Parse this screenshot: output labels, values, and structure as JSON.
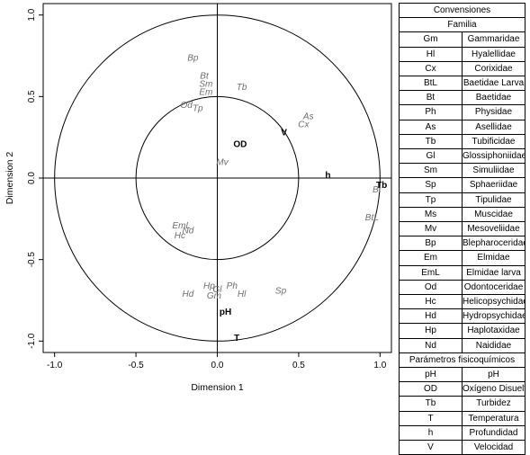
{
  "chart_data": {
    "type": "scatter",
    "xlabel": "Dimension  1",
    "ylabel": "Dimension  2",
    "xlim": [
      -1.0,
      1.0
    ],
    "ylim": [
      -1.0,
      1.0
    ],
    "x_ticks": [
      "-1.0",
      "-0.5",
      "0.0",
      "0.5",
      "1.0"
    ],
    "y_ticks": [
      "-1.0",
      "-0.5",
      "0.0",
      "0.5",
      "1.0"
    ],
    "x_tick_values": [
      -1.0,
      -0.5,
      0.0,
      0.5,
      1.0
    ],
    "y_tick_values": [
      -1.0,
      -0.5,
      0.0,
      0.5,
      1.0
    ],
    "circle_radii": [
      1.0,
      0.5
    ],
    "species": [
      {
        "label": "Bp",
        "x": -0.15,
        "y": 0.74
      },
      {
        "label": "Bt",
        "x": -0.08,
        "y": 0.63
      },
      {
        "label": "Sm",
        "x": -0.07,
        "y": 0.58
      },
      {
        "label": "Em",
        "x": -0.07,
        "y": 0.53
      },
      {
        "label": "Tb",
        "x": 0.15,
        "y": 0.56
      },
      {
        "label": "Od",
        "x": -0.19,
        "y": 0.45
      },
      {
        "label": "Tp",
        "x": -0.12,
        "y": 0.43
      },
      {
        "label": "As",
        "x": 0.56,
        "y": 0.38
      },
      {
        "label": "Cx",
        "x": 0.53,
        "y": 0.33
      },
      {
        "label": "Mv",
        "x": 0.03,
        "y": 0.1
      },
      {
        "label": "Bt",
        "x": 0.98,
        "y": -0.07
      },
      {
        "label": "BtL",
        "x": 0.95,
        "y": -0.24
      },
      {
        "label": "EmL",
        "x": -0.22,
        "y": -0.29
      },
      {
        "label": "Nd",
        "x": -0.18,
        "y": -0.32
      },
      {
        "label": "Hc",
        "x": -0.23,
        "y": -0.35
      },
      {
        "label": "Hp",
        "x": -0.05,
        "y": -0.66
      },
      {
        "label": "Gl",
        "x": 0.0,
        "y": -0.68
      },
      {
        "label": "Ph",
        "x": 0.09,
        "y": -0.66
      },
      {
        "label": "Hd",
        "x": -0.18,
        "y": -0.71
      },
      {
        "label": "Gm",
        "x": -0.02,
        "y": -0.72
      },
      {
        "label": "Hl",
        "x": 0.15,
        "y": -0.71
      },
      {
        "label": "Sp",
        "x": 0.39,
        "y": -0.69
      }
    ],
    "variables": [
      {
        "label": "OD",
        "x": 0.14,
        "y": 0.21
      },
      {
        "label": "V",
        "x": 0.41,
        "y": 0.28
      },
      {
        "label": "h",
        "x": 0.68,
        "y": 0.02
      },
      {
        "label": "Tb",
        "x": 1.01,
        "y": -0.04
      },
      {
        "label": "pH",
        "x": 0.05,
        "y": -0.82
      },
      {
        "label": "T",
        "x": 0.12,
        "y": -0.98
      }
    ]
  },
  "legend": {
    "title": "Convensiones",
    "familia_header": "Familia",
    "familias": [
      {
        "code": "Gm",
        "name": "Gammaridae"
      },
      {
        "code": "Hl",
        "name": "Hyalellidae"
      },
      {
        "code": "Cx",
        "name": "Corixidae"
      },
      {
        "code": "BtL",
        "name": "Baetidae Larva"
      },
      {
        "code": "Bt",
        "name": "Baetidae"
      },
      {
        "code": "Ph",
        "name": "Physidae"
      },
      {
        "code": "As",
        "name": "Asellidae"
      },
      {
        "code": "Tb",
        "name": "Tubificidae"
      },
      {
        "code": "Gl",
        "name": "Glossiphoniidae"
      },
      {
        "code": "Sm",
        "name": "Simuliidae"
      },
      {
        "code": "Sp",
        "name": "Sphaeriidae"
      },
      {
        "code": "Tp",
        "name": "Tipulidae"
      },
      {
        "code": "Ms",
        "name": "Muscidae"
      },
      {
        "code": "Mv",
        "name": "Mesoveliidae"
      },
      {
        "code": "Bp",
        "name": "Blepharoceridae"
      },
      {
        "code": "Em",
        "name": "Elmidae"
      },
      {
        "code": "EmL",
        "name": "Elmidae larva"
      },
      {
        "code": "Od",
        "name": "Odontoceridae"
      },
      {
        "code": "Hc",
        "name": "Helicopsychidae"
      },
      {
        "code": "Hd",
        "name": "Hydropsychidae"
      },
      {
        "code": "Hp",
        "name": "Haplotaxidae"
      },
      {
        "code": "Nd",
        "name": "Naididae"
      }
    ],
    "param_header": "Parámetros fisicoquímicos",
    "parametros": [
      {
        "code": "pH",
        "name": "pH"
      },
      {
        "code": "OD",
        "name": "Oxígeno Disuelto"
      },
      {
        "code": "Tb",
        "name": "Turbidez"
      },
      {
        "code": "T",
        "name": "Temperatura"
      },
      {
        "code": "h",
        "name": "Profundidad"
      },
      {
        "code": "V",
        "name": "Velocidad"
      }
    ]
  }
}
